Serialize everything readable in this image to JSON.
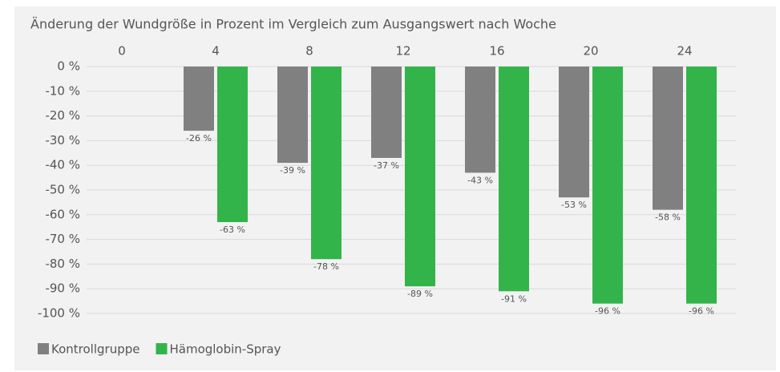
{
  "chart_data": {
    "type": "bar",
    "title": "Änderung der Wundgröße in Prozent im Vergleich zum Ausgangswert nach Woche",
    "categories": [
      "0",
      "4",
      "8",
      "12",
      "16",
      "20",
      "24"
    ],
    "series": [
      {
        "name": "Kontrollgruppe",
        "color": "#808080",
        "values": [
          null,
          -26,
          -39,
          -37,
          -43,
          -53,
          -58
        ],
        "value_labels": [
          null,
          "-26 %",
          "-39 %",
          "-37 %",
          "-43 %",
          "-53 %",
          "-58 %"
        ]
      },
      {
        "name": "Hämoglobin-Spray",
        "color": "#33b44a",
        "values": [
          null,
          -63,
          -78,
          -89,
          -91,
          -96,
          -96
        ],
        "value_labels": [
          null,
          "-63 %",
          "-78 %",
          "-89 %",
          "-91 %",
          "-96 %",
          "-96 %"
        ]
      }
    ],
    "ylim": [
      -100,
      0
    ],
    "yticks": [
      {
        "value": 0,
        "label": "0 %"
      },
      {
        "value": -10,
        "label": "-10 %"
      },
      {
        "value": -20,
        "label": "-20 %"
      },
      {
        "value": -30,
        "label": "-30 %"
      },
      {
        "value": -40,
        "label": "-40 %"
      },
      {
        "value": -50,
        "label": "-50 %"
      },
      {
        "value": -60,
        "label": "-60 %"
      },
      {
        "value": -70,
        "label": "-70 %"
      },
      {
        "value": -80,
        "label": "-80 %"
      },
      {
        "value": -90,
        "label": "-90 %"
      },
      {
        "value": -100,
        "label": "-100 %"
      }
    ],
    "grid": true,
    "legend": "bottom-left"
  }
}
